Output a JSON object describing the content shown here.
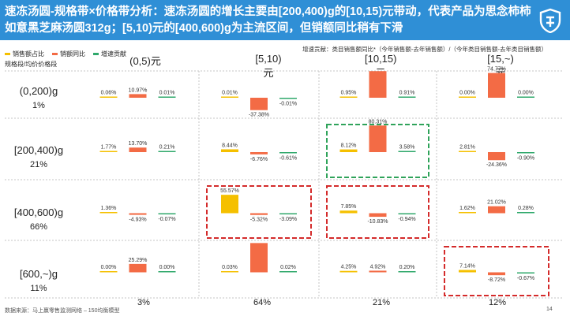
{
  "title": "速冻汤圆-规格带×价格带分析：速冻汤圆的增长主要由[200,400)g的[10,15)元带动，代表产品为思念柿柿如意黑芝麻汤圆312g；[5,10)元的[400,600)g为主流区间，但销额同比稍有下滑",
  "legend": [
    "销售额占比",
    "销额同比",
    "增速贡献"
  ],
  "formula": "增速贡献：类目销售额同比*（今年销售额-去年销售额）/（今年类目销售额-去年类目销售额）",
  "corner_label": "规格段/均价价格段",
  "colors": {
    "header": "#2f8fd6",
    "share": "#f5c000",
    "yoy": "#f36b45",
    "contrib": "#2fa86b",
    "hl_red": "#d42b2b",
    "hl_green": "#2fa35a"
  },
  "logo_icon": "shield-logo-icon",
  "chart_data": {
    "type": "bar",
    "columns": [
      "(0,5)元",
      "[5,10)元",
      "[10,15)元",
      "[15,~)元"
    ],
    "column_shares": [
      "3%",
      "64%",
      "21%",
      "12%"
    ],
    "rows": [
      {
        "label": "(0,200)g",
        "share": "1%"
      },
      {
        "label": "[200,400)g",
        "share": "21%"
      },
      {
        "label": "[400,600)g",
        "share": "66%"
      },
      {
        "label": "[600,~)g",
        "share": "11%"
      }
    ],
    "series": [
      "销售额占比",
      "销额同比",
      "增速贡献"
    ],
    "cells": [
      [
        [
          0.06,
          10.97,
          0.01
        ],
        [
          0.01,
          -37.38,
          -0.01
        ],
        [
          0.95,
          80.41,
          0.91
        ],
        [
          0.0,
          74.77,
          0.0
        ]
      ],
      [
        [
          1.77,
          13.7,
          0.21
        ],
        [
          8.44,
          -6.76,
          -0.61
        ],
        [
          8.12,
          80.31,
          3.58
        ],
        [
          2.81,
          -24.36,
          -0.9
        ]
      ],
      [
        [
          1.36,
          -4.93,
          -0.07
        ],
        [
          55.57,
          -5.32,
          -3.09
        ],
        [
          7.85,
          -10.83,
          -0.94
        ],
        [
          1.62,
          21.02,
          0.28
        ]
      ],
      [
        [
          0.0,
          25.29,
          0.0
        ],
        [
          0.03,
          88.42,
          0.02
        ],
        [
          4.25,
          4.92,
          0.2
        ],
        [
          7.14,
          -8.72,
          -0.67
        ]
      ]
    ],
    "labels": [
      [
        [
          "0.06%",
          "10.97%",
          "0.01%"
        ],
        [
          "0.01%",
          "-37.38%",
          "-0.01%"
        ],
        [
          "0.95%",
          "",
          "0.91%"
        ],
        [
          "0.00%",
          "74.77%",
          "0.00%"
        ]
      ],
      [
        [
          "1.77%",
          "13.70%",
          "0.21%"
        ],
        [
          "8.44%",
          "-6.76%",
          "-0.61%"
        ],
        [
          "8.12%",
          "80.31%",
          "3.58%"
        ],
        [
          "2.81%",
          "-24.36%",
          "-0.90%"
        ]
      ],
      [
        [
          "1.36%",
          "-4.93%",
          "-0.07%"
        ],
        [
          "55.57%",
          "-5.32%",
          "-3.09%"
        ],
        [
          "7.85%",
          "-10.83%",
          "-0.94%"
        ],
        [
          "1.62%",
          "21.02%",
          "0.28%"
        ]
      ],
      [
        [
          "0.00%",
          "25.29%",
          "0.00%"
        ],
        [
          "0.03%",
          "",
          "0.02%"
        ],
        [
          "4.25%",
          "4.92%",
          "0.20%"
        ],
        [
          "7.14%",
          "-8.72%",
          "-0.67%"
        ]
      ]
    ],
    "highlights": [
      {
        "row": 1,
        "col": 2,
        "style": "green"
      },
      {
        "row": 2,
        "col": 1,
        "style": "red"
      },
      {
        "row": 2,
        "col": 2,
        "style": "red"
      },
      {
        "row": 3,
        "col": 3,
        "style": "red"
      }
    ]
  },
  "source": "数据来源：马上赢零售监测网络 – 150均衡模型",
  "page_number": "14"
}
